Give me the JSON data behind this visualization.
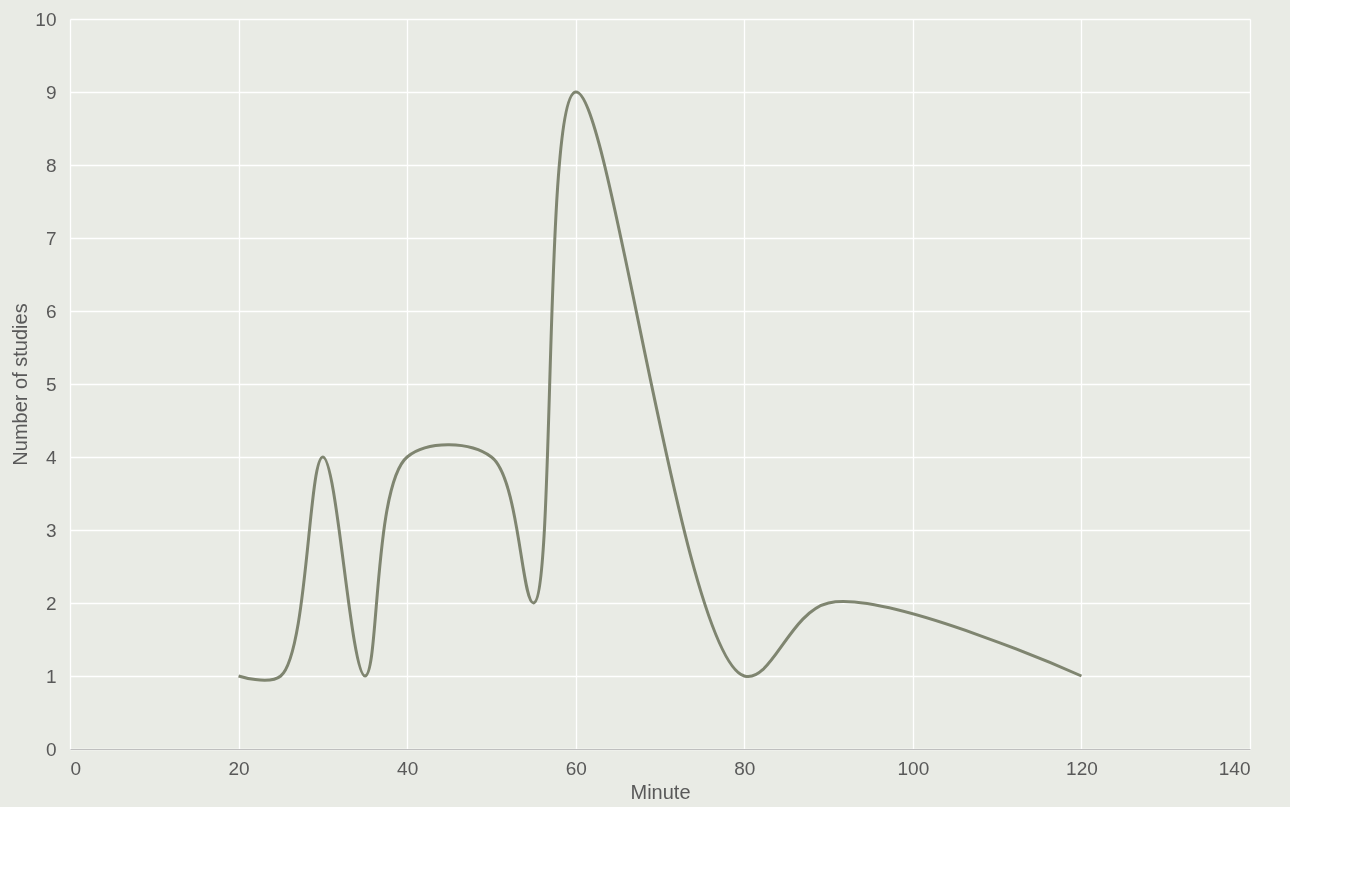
{
  "chart_data": {
    "type": "line",
    "xlabel": "Minute",
    "ylabel": "Number of studies",
    "x": [
      20,
      25,
      30,
      35,
      40,
      50,
      55,
      60,
      80,
      90,
      120
    ],
    "series": [
      {
        "color": "#7f8570",
        "values": [
          1,
          1,
          4,
          1,
          4,
          4,
          2,
          9,
          1,
          2,
          1
        ]
      }
    ],
    "xlim": [
      0,
      140
    ],
    "xticks": [
      0,
      20,
      40,
      60,
      80,
      100,
      120,
      140
    ],
    "ylim": [
      0,
      10
    ],
    "yticks": [
      0,
      1,
      2,
      3,
      4,
      5,
      6,
      7,
      8,
      9,
      10
    ],
    "grid": true,
    "marker": "none",
    "line_style": "solid"
  }
}
